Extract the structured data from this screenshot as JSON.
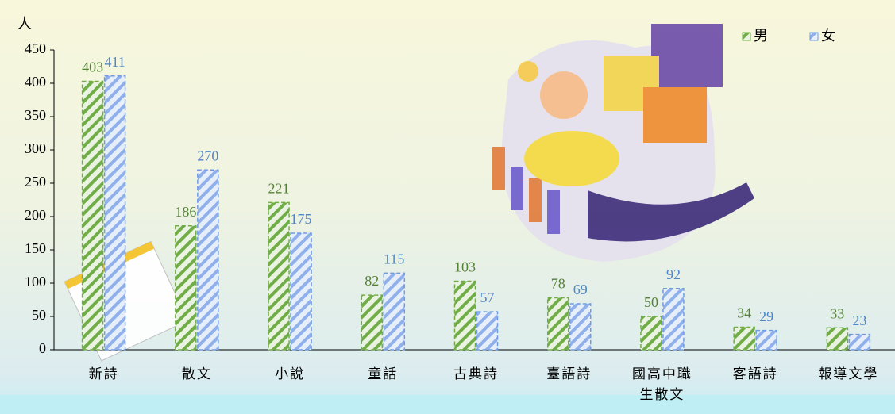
{
  "chart_data": {
    "type": "bar",
    "y_label": "人",
    "categories": [
      "新詩",
      "散文",
      "小說",
      "童話",
      "古典詩",
      "臺語詩",
      "國高中職生散文",
      "客語詩",
      "報導文學"
    ],
    "series": [
      {
        "name": "男",
        "color": "#70ad47",
        "label_color": "#548235",
        "values": [
          403,
          186,
          221,
          82,
          103,
          78,
          50,
          34,
          33
        ]
      },
      {
        "name": "女",
        "color": "#6f9be0",
        "label_color": "#4f86c6",
        "values": [
          411,
          270,
          175,
          115,
          57,
          69,
          92,
          29,
          23
        ]
      }
    ],
    "ylim": [
      0,
      450
    ],
    "yticks": [
      0,
      50,
      100,
      150,
      200,
      250,
      300,
      350,
      400,
      450
    ]
  }
}
